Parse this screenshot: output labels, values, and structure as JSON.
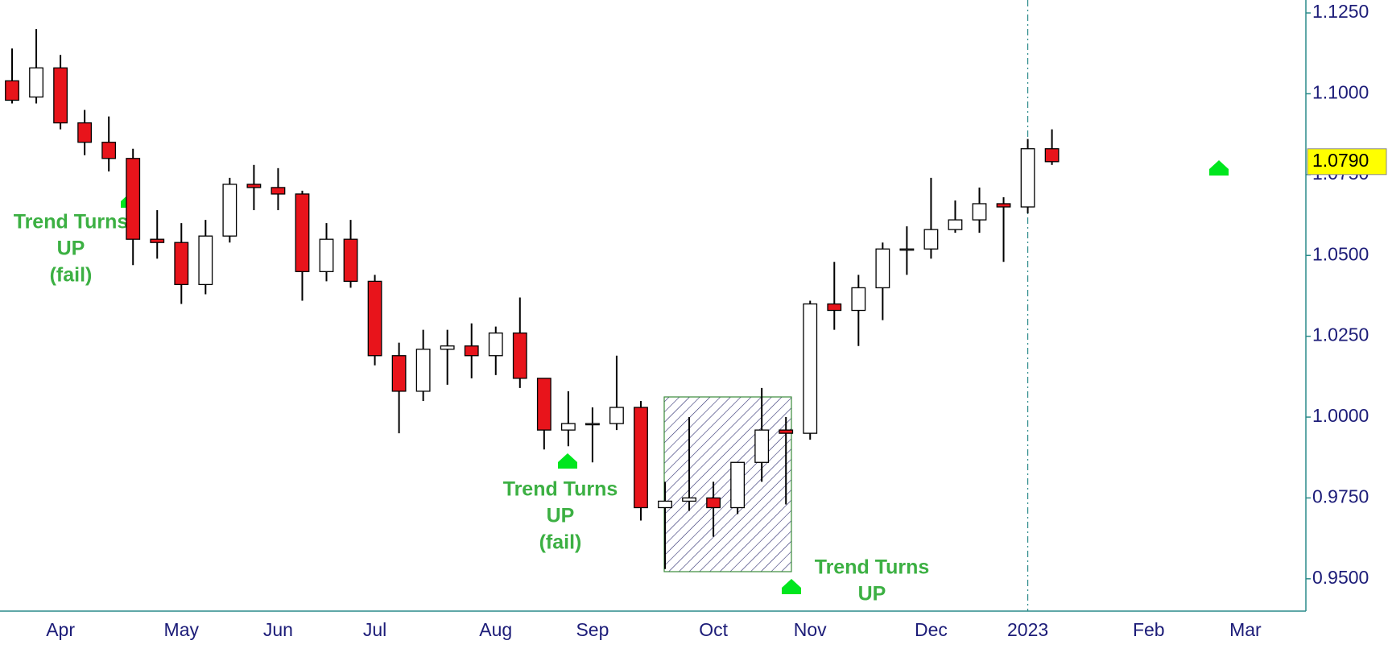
{
  "chart_data": {
    "type": "candlestick",
    "categories": [
      null,
      null,
      "Apr",
      null,
      null,
      null,
      null,
      "May",
      null,
      null,
      null,
      "Jun",
      null,
      null,
      null,
      "Jul",
      null,
      null,
      null,
      null,
      "Aug",
      null,
      null,
      null,
      "Sep",
      null,
      null,
      null,
      null,
      "Oct",
      null,
      null,
      null,
      "Nov",
      null,
      null,
      null,
      null,
      "Dec",
      null,
      null,
      null,
      "2023",
      null,
      null,
      null,
      null,
      "Feb",
      null,
      null,
      null,
      "Mar",
      null,
      null
    ],
    "open": [
      1.104,
      1.099,
      1.108,
      1.091,
      1.085,
      1.08,
      1.055,
      1.054,
      1.041,
      1.056,
      1.072,
      1.071,
      1.069,
      1.045,
      1.055,
      1.042,
      1.019,
      1.008,
      1.021,
      1.022,
      1.019,
      1.026,
      1.012,
      0.996,
      0.998,
      0.998,
      1.003,
      0.972,
      0.974,
      0.975,
      0.972,
      0.986,
      0.996,
      0.995,
      1.035,
      1.033,
      1.04,
      1.052,
      1.052,
      1.058,
      1.061,
      1.066,
      1.065,
      1.083,
      null,
      null,
      null,
      null,
      null,
      null,
      null,
      null,
      null,
      null
    ],
    "high": [
      1.114,
      1.12,
      1.112,
      1.095,
      1.093,
      1.083,
      1.064,
      1.06,
      1.061,
      1.074,
      1.078,
      1.077,
      1.07,
      1.06,
      1.061,
      1.044,
      1.023,
      1.027,
      1.027,
      1.029,
      1.028,
      1.037,
      1.012,
      1.008,
      1.003,
      1.019,
      1.005,
      0.98,
      1.0,
      0.98,
      0.986,
      1.009,
      1.0,
      1.036,
      1.048,
      1.044,
      1.054,
      1.059,
      1.074,
      1.067,
      1.071,
      1.068,
      1.086,
      1.089,
      null,
      null,
      null,
      null,
      null,
      null,
      null,
      null,
      null,
      null
    ],
    "low": [
      1.097,
      1.097,
      1.089,
      1.081,
      1.076,
      1.047,
      1.049,
      1.035,
      1.038,
      1.054,
      1.064,
      1.064,
      1.036,
      1.042,
      1.04,
      1.016,
      0.995,
      1.005,
      1.01,
      1.012,
      1.013,
      1.009,
      0.99,
      0.991,
      0.986,
      0.996,
      0.968,
      0.953,
      0.971,
      0.963,
      0.97,
      0.98,
      0.973,
      0.993,
      1.027,
      1.022,
      1.03,
      1.044,
      1.049,
      1.057,
      1.057,
      1.048,
      1.063,
      1.078,
      null,
      null,
      null,
      null,
      null,
      null,
      null,
      null,
      null,
      null
    ],
    "close": [
      1.098,
      1.108,
      1.091,
      1.085,
      1.08,
      1.055,
      1.054,
      1.041,
      1.056,
      1.072,
      1.071,
      1.069,
      1.045,
      1.055,
      1.042,
      1.019,
      1.008,
      1.021,
      1.022,
      1.019,
      1.026,
      1.012,
      0.996,
      0.998,
      0.998,
      1.003,
      0.972,
      0.974,
      0.975,
      0.972,
      0.986,
      0.996,
      0.995,
      1.035,
      1.033,
      1.04,
      1.052,
      1.052,
      1.058,
      1.061,
      1.066,
      1.065,
      1.083,
      1.079,
      null,
      null,
      null,
      null,
      null,
      null,
      null,
      null,
      null,
      null
    ],
    "up_color": "#ffffff",
    "down_color": "#e8141b",
    "ylim": [
      0.94,
      1.129
    ],
    "yticks": [
      {
        "value": 0.95,
        "label": "0.9500"
      },
      {
        "value": 0.975,
        "label": "0.9750"
      },
      {
        "value": 1.0,
        "label": "1.0000"
      },
      {
        "value": 1.025,
        "label": "1.0250"
      },
      {
        "value": 1.05,
        "label": "1.0500"
      },
      {
        "value": 1.075,
        "label": "1.0750"
      },
      {
        "value": 1.1,
        "label": "1.1000"
      },
      {
        "value": 1.125,
        "label": "1.1250"
      }
    ],
    "current_price": {
      "value": 1.079,
      "label": "1.0790"
    },
    "annotations": [
      {
        "lines": [
          "Trend Turns",
          "UP",
          "(fail)"
        ]
      },
      {
        "lines": [
          "Trend Turns",
          "UP",
          "(fail)"
        ]
      },
      {
        "lines": [
          "Trend Turns",
          "UP"
        ]
      }
    ]
  }
}
